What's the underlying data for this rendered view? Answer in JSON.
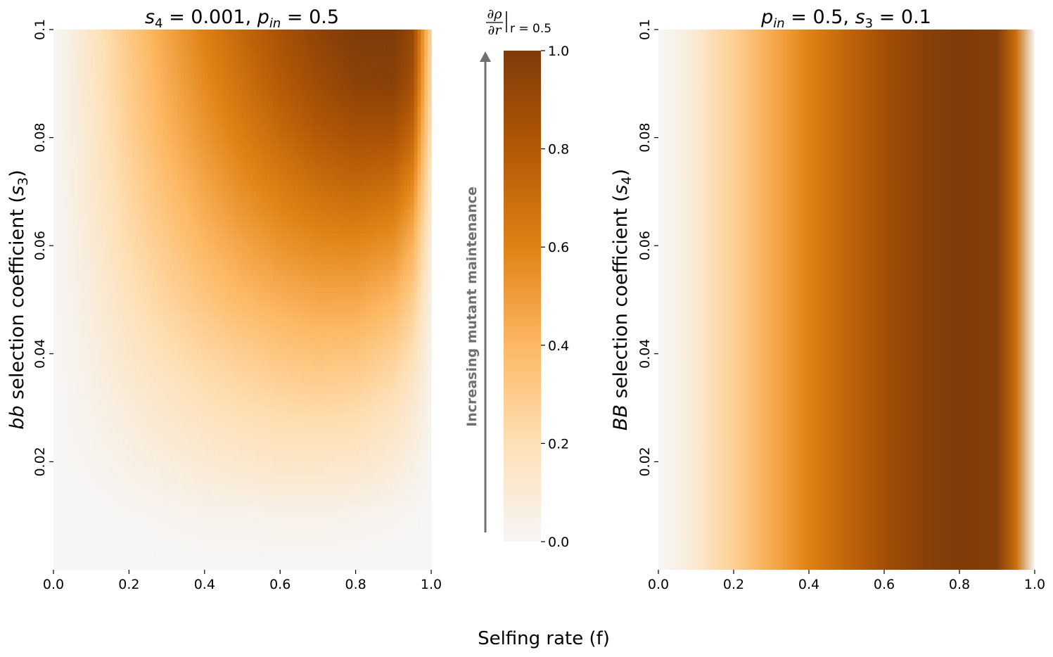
{
  "chart_data": [
    {
      "type": "heatmap",
      "title_parts": {
        "a": "s",
        "a_sub": "4",
        "a_val": " = 0.001, ",
        "b": "p",
        "b_sub": "in",
        "b_val": " = 0.5"
      },
      "xlabel": "Selfing rate (f)",
      "ylabel_parts": {
        "italic": "bb",
        "text": " selection coefficient (",
        "sym": "s",
        "sub": "3",
        "close": ")"
      },
      "x_ticks": [
        "0.0",
        "0.2",
        "0.4",
        "0.6",
        "0.8",
        "1.0"
      ],
      "x_tick_values": [
        0.0,
        0.2,
        0.4,
        0.6,
        0.8,
        1.0
      ],
      "y_ticks": [
        "0.02",
        "0.04",
        "0.06",
        "0.08",
        "0.1"
      ],
      "y_tick_values": [
        0.02,
        0.04,
        0.06,
        0.08,
        0.1
      ],
      "xlim": [
        0,
        1
      ],
      "ylim": [
        0.0,
        0.1
      ],
      "x": [
        0.0,
        0.1,
        0.2,
        0.3,
        0.4,
        0.5,
        0.6,
        0.7,
        0.8,
        0.9,
        0.95,
        1.0
      ],
      "y": [
        0.0,
        0.01,
        0.02,
        0.03,
        0.04,
        0.05,
        0.06,
        0.07,
        0.08,
        0.09,
        0.1
      ],
      "z": [
        [
          0.0,
          0.0,
          0.0,
          0.0,
          0.0,
          0.0,
          0.0,
          0.0,
          0.0,
          0.0,
          0.0,
          0.0
        ],
        [
          0.0,
          0.0,
          0.01,
          0.02,
          0.03,
          0.03,
          0.04,
          0.04,
          0.03,
          0.02,
          0.01,
          0.0
        ],
        [
          0.0,
          0.02,
          0.05,
          0.08,
          0.11,
          0.13,
          0.15,
          0.15,
          0.14,
          0.1,
          0.06,
          0.01
        ],
        [
          0.0,
          0.04,
          0.09,
          0.14,
          0.18,
          0.21,
          0.23,
          0.24,
          0.23,
          0.18,
          0.12,
          0.02
        ],
        [
          0.0,
          0.06,
          0.14,
          0.2,
          0.25,
          0.29,
          0.33,
          0.35,
          0.34,
          0.28,
          0.2,
          0.04
        ],
        [
          0.0,
          0.08,
          0.18,
          0.26,
          0.33,
          0.39,
          0.43,
          0.46,
          0.46,
          0.4,
          0.3,
          0.06
        ],
        [
          0.0,
          0.1,
          0.22,
          0.31,
          0.4,
          0.47,
          0.53,
          0.57,
          0.58,
          0.54,
          0.42,
          0.09
        ],
        [
          0.0,
          0.12,
          0.25,
          0.36,
          0.46,
          0.55,
          0.62,
          0.68,
          0.71,
          0.68,
          0.56,
          0.13
        ],
        [
          0.0,
          0.13,
          0.28,
          0.41,
          0.52,
          0.62,
          0.71,
          0.79,
          0.84,
          0.83,
          0.72,
          0.18
        ],
        [
          0.0,
          0.14,
          0.3,
          0.44,
          0.57,
          0.68,
          0.79,
          0.88,
          0.95,
          0.96,
          0.86,
          0.22
        ],
        [
          0.0,
          0.15,
          0.32,
          0.47,
          0.61,
          0.73,
          0.84,
          0.94,
          1.0,
          1.0,
          0.92,
          0.25
        ]
      ]
    },
    {
      "type": "heatmap",
      "title_parts": {
        "a": "p",
        "a_sub": "in",
        "a_val": " = 0.5, ",
        "b": "s",
        "b_sub": "3",
        "b_val": " = 0.1"
      },
      "xlabel": "Selfing rate (f)",
      "ylabel_parts": {
        "italic": "BB",
        "text": " selection coefficient (",
        "sym": "s",
        "sub": "4",
        "close": ")"
      },
      "x_ticks": [
        "0.0",
        "0.2",
        "0.4",
        "0.6",
        "0.8",
        "1.0"
      ],
      "x_tick_values": [
        0.0,
        0.2,
        0.4,
        0.6,
        0.8,
        1.0
      ],
      "y_ticks": [
        "0.02",
        "0.04",
        "0.06",
        "0.08",
        "0.1"
      ],
      "y_tick_values": [
        0.02,
        0.04,
        0.06,
        0.08,
        0.1
      ],
      "xlim": [
        0,
        1
      ],
      "ylim": [
        0.0,
        0.1
      ],
      "x": [
        0.0,
        0.05,
        0.1,
        0.2,
        0.3,
        0.4,
        0.5,
        0.6,
        0.7,
        0.8,
        0.9,
        0.95,
        1.0
      ],
      "values_uniform_in_y": [
        0.0,
        0.05,
        0.12,
        0.28,
        0.45,
        0.6,
        0.74,
        0.86,
        0.96,
        1.0,
        0.98,
        0.7,
        0.0
      ]
    }
  ],
  "colorbar": {
    "title_num": "∂ρ",
    "title_den": "∂r",
    "title_sub": "r = 0.5",
    "ticks": [
      "0.0",
      "0.2",
      "0.4",
      "0.6",
      "0.8",
      "1.0"
    ],
    "tick_values": [
      0.0,
      0.2,
      0.4,
      0.6,
      0.8,
      1.0
    ],
    "range": [
      0,
      1
    ],
    "colormap": "PuOr-orange",
    "colors": [
      "#f6f6f6",
      "#fee0b6",
      "#fdb863",
      "#e08214",
      "#b35806",
      "#7f3b08"
    ]
  },
  "arrow_label": "Increasing mutant maintenance",
  "shared_xlabel": "Selfing rate (f)"
}
